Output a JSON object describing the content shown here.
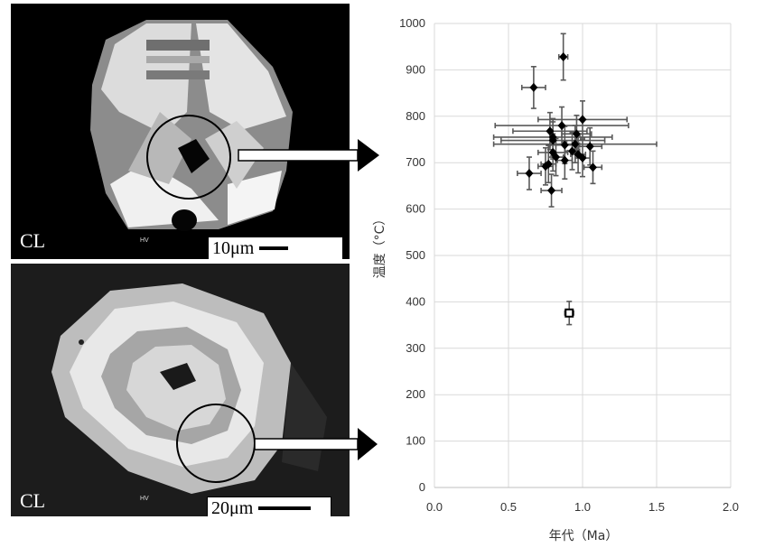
{
  "images": [
    {
      "label": "CL",
      "hv": "HV",
      "scale_text": "10μm"
    },
    {
      "label": "CL",
      "hv": "HV",
      "scale_text": "20μm"
    }
  ],
  "chart_data": {
    "type": "scatter",
    "xlabel": "年代（Ma）",
    "ylabel": "温度（°C）",
    "xlim": [
      0,
      2.0
    ],
    "ylim": [
      0,
      1000
    ],
    "x_ticks": [
      "0.0",
      "0.5",
      "1.0",
      "1.5",
      "2.0"
    ],
    "y_ticks": [
      "0",
      "100",
      "200",
      "300",
      "400",
      "500",
      "600",
      "700",
      "800",
      "900",
      "1000"
    ],
    "grid": true,
    "series": [
      {
        "marker": "diamond-filled",
        "points": [
          {
            "x": 0.87,
            "y": 928,
            "xerr": 0.03,
            "yerr": 50
          },
          {
            "x": 0.67,
            "y": 862,
            "xerr": 0.08,
            "yerr": 45
          },
          {
            "x": 1.0,
            "y": 793,
            "xerr": 0.3,
            "yerr": 40
          },
          {
            "x": 0.86,
            "y": 780,
            "xerr": 0.45,
            "yerr": 40
          },
          {
            "x": 0.78,
            "y": 768,
            "xerr": 0.25,
            "yerr": 40
          },
          {
            "x": 0.96,
            "y": 762,
            "xerr": 0.1,
            "yerr": 40
          },
          {
            "x": 0.8,
            "y": 755,
            "xerr": 0.4,
            "yerr": 40
          },
          {
            "x": 0.8,
            "y": 748,
            "xerr": 0.35,
            "yerr": 40
          },
          {
            "x": 0.95,
            "y": 740,
            "xerr": 0.55,
            "yerr": 40
          },
          {
            "x": 0.88,
            "y": 738,
            "xerr": 0.1,
            "yerr": 40
          },
          {
            "x": 1.05,
            "y": 735,
            "xerr": 0.08,
            "yerr": 40
          },
          {
            "x": 0.93,
            "y": 725,
            "xerr": 0.05,
            "yerr": 40
          },
          {
            "x": 0.8,
            "y": 722,
            "xerr": 0.1,
            "yerr": 40
          },
          {
            "x": 0.97,
            "y": 718,
            "xerr": 0.05,
            "yerr": 40
          },
          {
            "x": 0.82,
            "y": 712,
            "xerr": 0.05,
            "yerr": 40
          },
          {
            "x": 1.0,
            "y": 710,
            "xerr": 0.05,
            "yerr": 40
          },
          {
            "x": 0.88,
            "y": 705,
            "xerr": 0.05,
            "yerr": 40
          },
          {
            "x": 0.77,
            "y": 697,
            "xerr": 0.05,
            "yerr": 40
          },
          {
            "x": 0.75,
            "y": 692,
            "xerr": 0.05,
            "yerr": 40
          },
          {
            "x": 1.07,
            "y": 690,
            "xerr": 0.06,
            "yerr": 35
          },
          {
            "x": 0.64,
            "y": 677,
            "xerr": 0.08,
            "yerr": 35
          },
          {
            "x": 0.79,
            "y": 640,
            "xerr": 0.07,
            "yerr": 35
          }
        ]
      },
      {
        "marker": "square-open",
        "points": [
          {
            "x": 0.91,
            "y": 376,
            "xerr": 0.03,
            "yerr": 25
          }
        ]
      }
    ]
  }
}
